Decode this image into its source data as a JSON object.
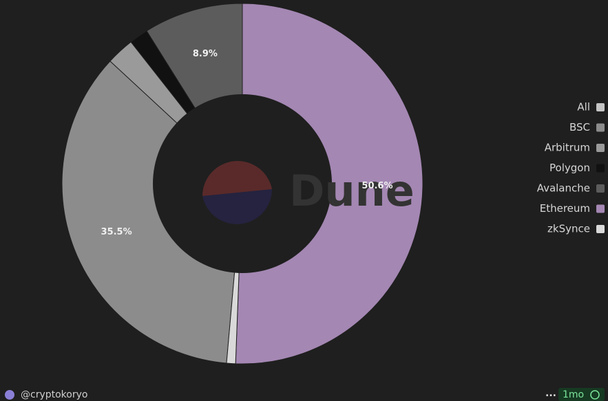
{
  "chart_data": {
    "type": "pie",
    "donut": true,
    "categories": [
      "All",
      "BSC",
      "Arbitrum",
      "Polygon",
      "Avalanche",
      "Ethereum",
      "zkSynce"
    ],
    "values": [
      0,
      35.5,
      2.5,
      1.7,
      8.9,
      50.6,
      0.8
    ],
    "value_labels": [
      null,
      "35.5%",
      null,
      null,
      "8.9%",
      "50.6%",
      null
    ],
    "colors": [
      "#c4c4c4",
      "#8c8c8c",
      "#9a9a9a",
      "#111111",
      "#5c5c5c",
      "#a487b3",
      "#d9d9d9"
    ],
    "watermark": "Dune"
  },
  "footer": {
    "author": "@cryptokoryo",
    "menu": "...",
    "age": "1mo"
  }
}
